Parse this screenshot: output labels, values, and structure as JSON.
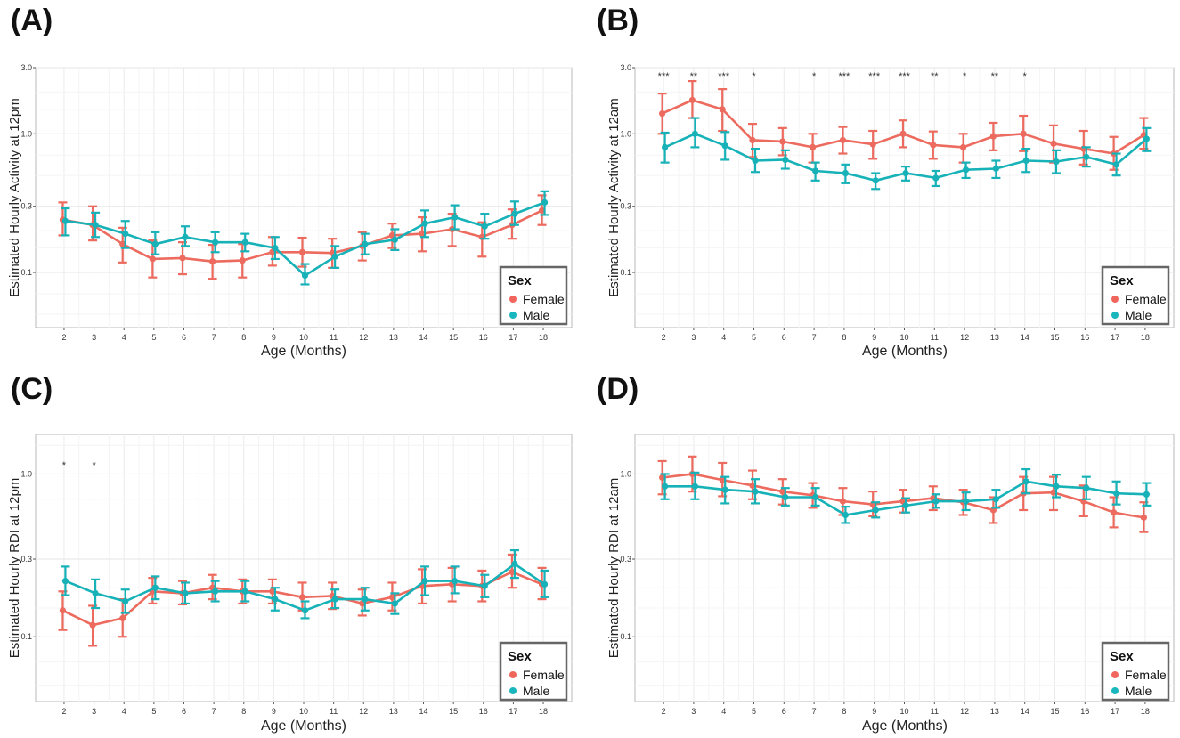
{
  "chart_data": [
    {
      "panel_label": "(A)",
      "type": "line",
      "ylabel": "Estimated Hourly Activity at 12pm",
      "xlabel": "Age (Months)",
      "y_scale": "log",
      "ylim": [
        0.04,
        3.0
      ],
      "yticks": [
        0.1,
        0.3,
        1.0,
        3.0
      ],
      "ytick_labels": [
        "0.1",
        "0.3",
        "1.0",
        "3.0"
      ],
      "x": [
        2,
        3,
        4,
        5,
        6,
        7,
        8,
        9,
        10,
        11,
        12,
        13,
        14,
        15,
        16,
        17,
        18
      ],
      "legend": {
        "title": "Sex",
        "entries": [
          "Female",
          "Male"
        ],
        "colors": [
          "#f0665d",
          "#1ab6bd"
        ],
        "position": "bottom-right"
      },
      "significance": [],
      "series": [
        {
          "name": "Female",
          "color": "#ed6a5e",
          "values": [
            0.24,
            0.22,
            0.16,
            0.125,
            0.127,
            0.12,
            0.122,
            0.14,
            0.14,
            0.138,
            0.155,
            0.185,
            0.19,
            0.205,
            0.18,
            0.22,
            0.28
          ],
          "lower": [
            0.185,
            0.17,
            0.118,
            0.092,
            0.097,
            0.09,
            0.092,
            0.112,
            0.11,
            0.108,
            0.122,
            0.15,
            0.142,
            0.155,
            0.13,
            0.175,
            0.22
          ],
          "upper": [
            0.32,
            0.3,
            0.21,
            0.17,
            0.165,
            0.158,
            0.16,
            0.18,
            0.178,
            0.175,
            0.195,
            0.225,
            0.25,
            0.265,
            0.23,
            0.285,
            0.36
          ]
        },
        {
          "name": "Male",
          "color": "#16b2b8",
          "values": [
            0.235,
            0.22,
            0.19,
            0.16,
            0.18,
            0.165,
            0.165,
            0.15,
            0.095,
            0.13,
            0.16,
            0.172,
            0.225,
            0.25,
            0.215,
            0.265,
            0.32
          ],
          "lower": [
            0.185,
            0.18,
            0.15,
            0.135,
            0.155,
            0.14,
            0.142,
            0.125,
            0.082,
            0.108,
            0.135,
            0.145,
            0.18,
            0.205,
            0.175,
            0.22,
            0.26
          ],
          "upper": [
            0.29,
            0.27,
            0.235,
            0.195,
            0.215,
            0.195,
            0.19,
            0.18,
            0.115,
            0.155,
            0.19,
            0.205,
            0.28,
            0.305,
            0.265,
            0.325,
            0.385
          ]
        }
      ]
    },
    {
      "panel_label": "(B)",
      "type": "line",
      "ylabel": "Estimated Hourly Activity at 12am",
      "xlabel": "Age (Months)",
      "y_scale": "log",
      "ylim": [
        0.04,
        3.0
      ],
      "yticks": [
        0.1,
        0.3,
        1.0,
        3.0
      ],
      "ytick_labels": [
        "0.1",
        "0.3",
        "1.0",
        "3.0"
      ],
      "x": [
        2,
        3,
        4,
        5,
        6,
        7,
        8,
        9,
        10,
        11,
        12,
        13,
        14,
        15,
        16,
        17,
        18
      ],
      "legend": {
        "title": "Sex",
        "entries": [
          "Female",
          "Male"
        ],
        "colors": [
          "#f0665d",
          "#1ab6bd"
        ],
        "position": "bottom-right"
      },
      "significance": [
        {
          "x": 2,
          "label": "***"
        },
        {
          "x": 3,
          "label": "**"
        },
        {
          "x": 4,
          "label": "***"
        },
        {
          "x": 5,
          "label": "*"
        },
        {
          "x": 7,
          "label": "*"
        },
        {
          "x": 8,
          "label": "***"
        },
        {
          "x": 9,
          "label": "***"
        },
        {
          "x": 10,
          "label": "***"
        },
        {
          "x": 11,
          "label": "**"
        },
        {
          "x": 12,
          "label": "*"
        },
        {
          "x": 13,
          "label": "**"
        },
        {
          "x": 14,
          "label": "*"
        }
      ],
      "series": [
        {
          "name": "Female",
          "color": "#ed6a5e",
          "values": [
            1.4,
            1.75,
            1.5,
            0.9,
            0.88,
            0.8,
            0.9,
            0.84,
            1.0,
            0.83,
            0.8,
            0.96,
            1.0,
            0.85,
            0.78,
            0.72,
            0.98
          ],
          "lower": [
            1.0,
            1.3,
            1.05,
            0.68,
            0.7,
            0.62,
            0.72,
            0.66,
            0.8,
            0.66,
            0.62,
            0.76,
            0.75,
            0.62,
            0.6,
            0.55,
            0.78
          ],
          "upper": [
            1.95,
            2.4,
            2.1,
            1.18,
            1.1,
            1.0,
            1.12,
            1.05,
            1.25,
            1.04,
            1.0,
            1.2,
            1.35,
            1.15,
            1.05,
            0.95,
            1.3
          ]
        },
        {
          "name": "Male",
          "color": "#16b2b8",
          "values": [
            0.8,
            1.0,
            0.82,
            0.64,
            0.65,
            0.54,
            0.52,
            0.46,
            0.52,
            0.48,
            0.55,
            0.56,
            0.64,
            0.63,
            0.68,
            0.6,
            0.92
          ],
          "lower": [
            0.62,
            0.8,
            0.65,
            0.53,
            0.56,
            0.46,
            0.44,
            0.4,
            0.46,
            0.42,
            0.48,
            0.48,
            0.53,
            0.52,
            0.58,
            0.5,
            0.75
          ],
          "upper": [
            1.02,
            1.3,
            1.03,
            0.78,
            0.76,
            0.62,
            0.6,
            0.52,
            0.58,
            0.54,
            0.62,
            0.64,
            0.78,
            0.76,
            0.8,
            0.72,
            1.1
          ]
        }
      ]
    },
    {
      "panel_label": "(C)",
      "type": "line",
      "ylabel": "Estimated Hourly RDI at 12pm",
      "xlabel": "Age (Months)",
      "y_scale": "log",
      "ylim": [
        0.04,
        1.75
      ],
      "yticks": [
        0.1,
        0.3,
        1.0
      ],
      "ytick_labels": [
        "0.1",
        "0.3",
        "1.0"
      ],
      "x": [
        2,
        3,
        4,
        5,
        6,
        7,
        8,
        9,
        10,
        11,
        12,
        13,
        14,
        15,
        16,
        17,
        18
      ],
      "legend": {
        "title": "Sex",
        "entries": [
          "Female",
          "Male"
        ],
        "colors": [
          "#f0665d",
          "#1ab6bd"
        ],
        "position": "bottom-right"
      },
      "significance": [
        {
          "x": 2,
          "label": "*"
        },
        {
          "x": 3,
          "label": "*"
        }
      ],
      "series": [
        {
          "name": "Female",
          "color": "#ed6a5e",
          "values": [
            0.145,
            0.118,
            0.13,
            0.19,
            0.185,
            0.2,
            0.19,
            0.19,
            0.175,
            0.178,
            0.16,
            0.175,
            0.205,
            0.21,
            0.205,
            0.25,
            0.21
          ],
          "lower": [
            0.11,
            0.088,
            0.1,
            0.16,
            0.158,
            0.17,
            0.16,
            0.16,
            0.145,
            0.148,
            0.135,
            0.145,
            0.16,
            0.165,
            0.165,
            0.2,
            0.17
          ],
          "upper": [
            0.19,
            0.155,
            0.17,
            0.23,
            0.22,
            0.24,
            0.225,
            0.225,
            0.215,
            0.215,
            0.195,
            0.215,
            0.26,
            0.265,
            0.255,
            0.32,
            0.265
          ]
        },
        {
          "name": "Male",
          "color": "#16b2b8",
          "values": [
            0.22,
            0.185,
            0.165,
            0.2,
            0.185,
            0.19,
            0.19,
            0.17,
            0.145,
            0.17,
            0.17,
            0.16,
            0.22,
            0.22,
            0.205,
            0.28,
            0.21
          ],
          "lower": [
            0.18,
            0.15,
            0.14,
            0.17,
            0.16,
            0.165,
            0.165,
            0.145,
            0.13,
            0.15,
            0.145,
            0.138,
            0.18,
            0.185,
            0.175,
            0.23,
            0.175
          ],
          "upper": [
            0.27,
            0.225,
            0.195,
            0.235,
            0.215,
            0.22,
            0.22,
            0.2,
            0.165,
            0.195,
            0.2,
            0.185,
            0.27,
            0.27,
            0.24,
            0.34,
            0.255
          ]
        }
      ]
    },
    {
      "panel_label": "(D)",
      "type": "line",
      "ylabel": "Estimated Hourly RDI at 12am",
      "xlabel": "Age (Months)",
      "y_scale": "log",
      "ylim": [
        0.04,
        1.75
      ],
      "yticks": [
        0.1,
        0.3,
        1.0
      ],
      "ytick_labels": [
        "0.1",
        "0.3",
        "1.0"
      ],
      "x": [
        2,
        3,
        4,
        5,
        6,
        7,
        8,
        9,
        10,
        11,
        12,
        13,
        14,
        15,
        16,
        17,
        18
      ],
      "legend": {
        "title": "Sex",
        "entries": [
          "Female",
          "Male"
        ],
        "colors": [
          "#f0665d",
          "#1ab6bd"
        ],
        "position": "bottom-right"
      },
      "significance": [],
      "series": [
        {
          "name": "Female",
          "color": "#ed6a5e",
          "values": [
            0.95,
            1.0,
            0.92,
            0.85,
            0.78,
            0.74,
            0.68,
            0.65,
            0.68,
            0.71,
            0.67,
            0.6,
            0.76,
            0.77,
            0.68,
            0.58,
            0.54
          ],
          "lower": [
            0.75,
            0.78,
            0.73,
            0.7,
            0.65,
            0.62,
            0.56,
            0.55,
            0.58,
            0.6,
            0.56,
            0.5,
            0.6,
            0.6,
            0.55,
            0.47,
            0.44
          ],
          "upper": [
            1.2,
            1.28,
            1.17,
            1.05,
            0.93,
            0.88,
            0.82,
            0.78,
            0.8,
            0.84,
            0.8,
            0.72,
            0.96,
            0.96,
            0.85,
            0.72,
            0.67
          ]
        },
        {
          "name": "Male",
          "color": "#16b2b8",
          "values": [
            0.84,
            0.84,
            0.8,
            0.78,
            0.72,
            0.72,
            0.56,
            0.6,
            0.64,
            0.68,
            0.68,
            0.7,
            0.9,
            0.84,
            0.82,
            0.76,
            0.75
          ],
          "lower": [
            0.7,
            0.7,
            0.66,
            0.66,
            0.64,
            0.64,
            0.5,
            0.54,
            0.58,
            0.62,
            0.6,
            0.62,
            0.76,
            0.72,
            0.7,
            0.65,
            0.64
          ],
          "upper": [
            1.0,
            1.02,
            0.96,
            0.93,
            0.82,
            0.82,
            0.63,
            0.67,
            0.71,
            0.75,
            0.77,
            0.8,
            1.07,
            0.99,
            0.96,
            0.9,
            0.88
          ]
        }
      ]
    }
  ]
}
